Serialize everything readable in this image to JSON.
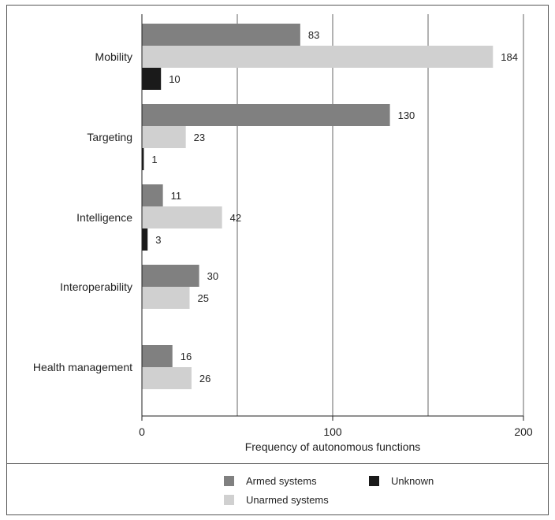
{
  "chart_data": {
    "type": "bar",
    "orientation": "horizontal",
    "categories": [
      "Mobility",
      "Targeting",
      "Intelligence",
      "Interoperability",
      "Health management"
    ],
    "series": [
      {
        "name": "Armed systems",
        "color": "#808080",
        "values": [
          83,
          130,
          11,
          30,
          16
        ]
      },
      {
        "name": "Unarmed systems",
        "color": "#d0d0d0",
        "values": [
          184,
          23,
          42,
          25,
          26
        ]
      },
      {
        "name": "Unknown",
        "color": "#1a1a1a",
        "values": [
          10,
          1,
          3,
          null,
          null
        ]
      }
    ],
    "xlabel": "Frequency of autonomous functions",
    "ylabel": "",
    "xlim": [
      0,
      200
    ],
    "xticks": [
      0,
      100,
      200
    ],
    "grid": true,
    "legend_position": "bottom"
  }
}
